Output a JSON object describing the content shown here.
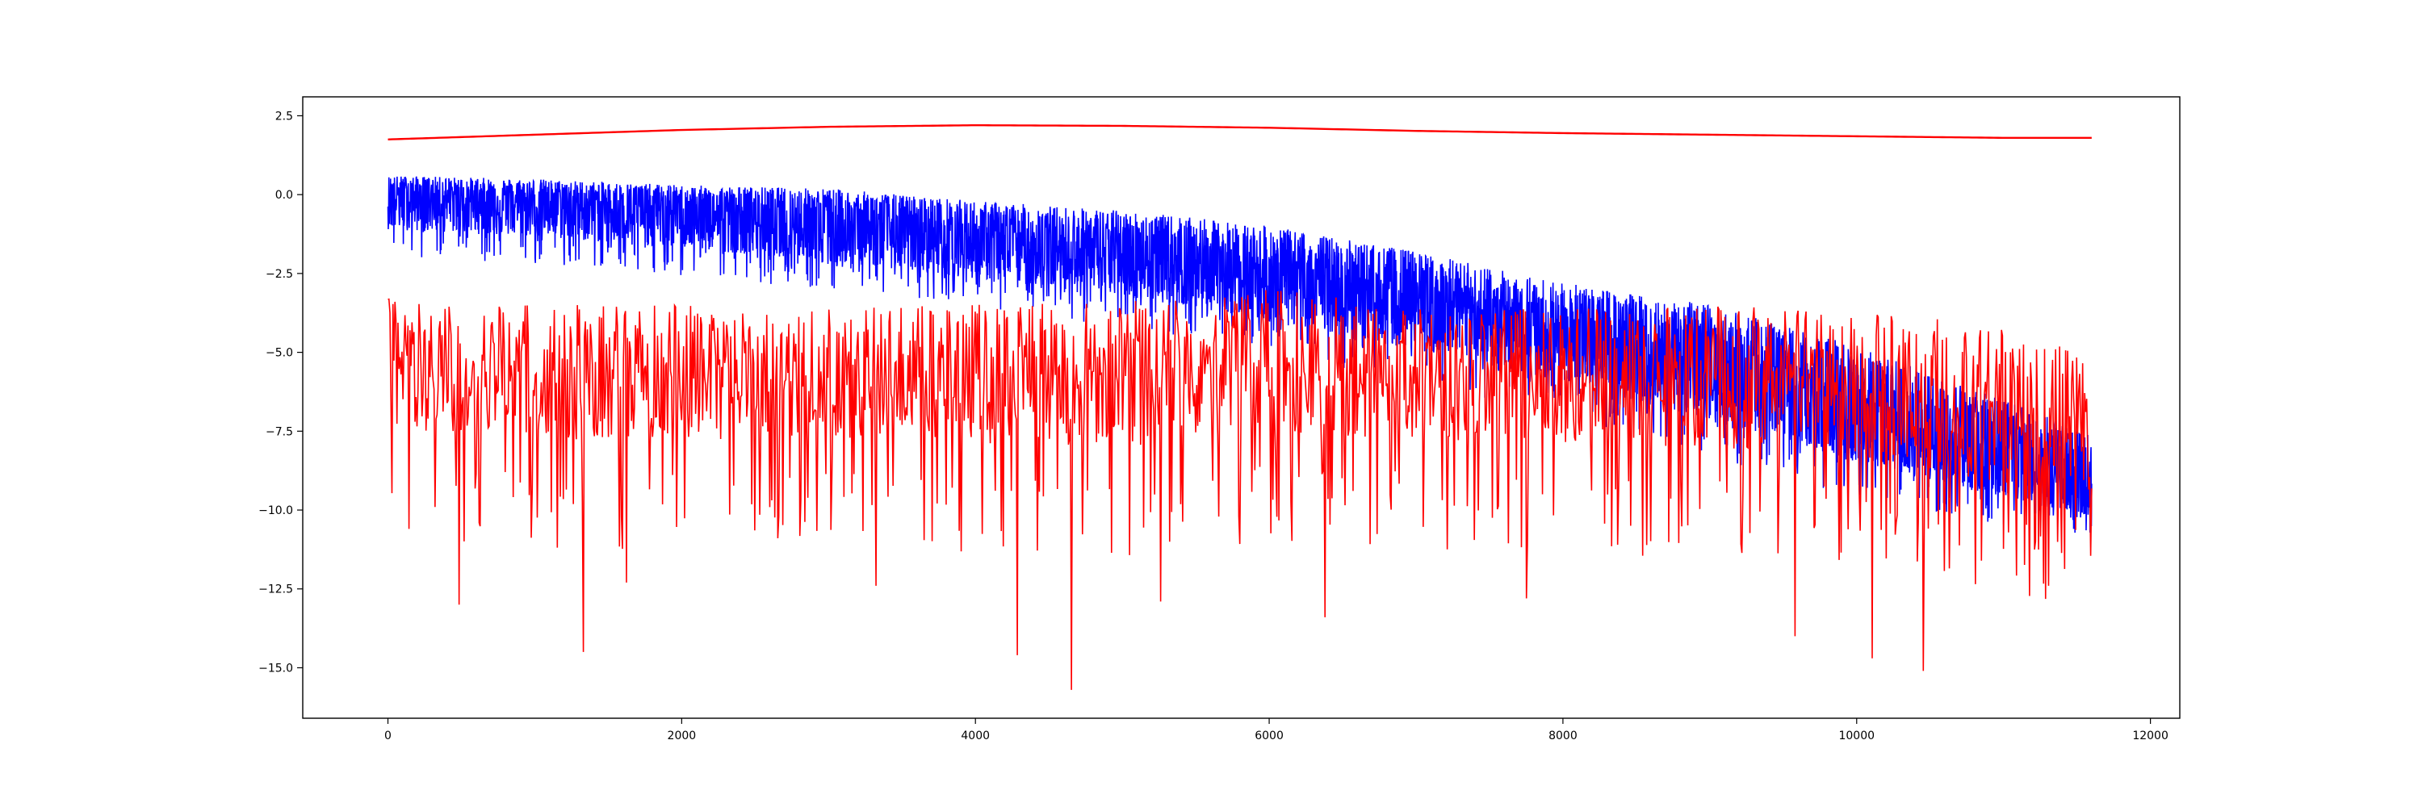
{
  "chart_data": {
    "type": "line",
    "title": "",
    "xlabel": "",
    "ylabel": "",
    "xlim": [
      -580,
      12200
    ],
    "ylim": [
      -16.6,
      3.1
    ],
    "xticks": [
      0,
      2000,
      4000,
      6000,
      8000,
      10000,
      12000
    ],
    "xtick_labels": [
      "0",
      "2000",
      "4000",
      "6000",
      "8000",
      "10000",
      "12000"
    ],
    "yticks": [
      2.5,
      0.0,
      -2.5,
      -5.0,
      -7.5,
      -10.0,
      -12.5,
      -15.0
    ],
    "ytick_labels": [
      "2.5",
      "0.0",
      "−2.5",
      "−5.0",
      "−7.5",
      "−10.0",
      "−12.5",
      "−15.0"
    ],
    "grid": false,
    "legend": "none",
    "series": [
      {
        "color": "#0000ff",
        "style": "noisy band",
        "x": [
          0,
          1000,
          2000,
          3000,
          4000,
          5000,
          6000,
          7000,
          8000,
          9000,
          10000,
          11000,
          11600
        ],
        "center": [
          0.0,
          -0.3,
          -0.6,
          -1.0,
          -1.5,
          -2.0,
          -2.7,
          -3.6,
          -4.6,
          -5.8,
          -7.1,
          -8.6,
          -9.4
        ],
        "lower_extent": [
          -2.0,
          -2.2,
          -2.6,
          -3.0,
          -3.6,
          -4.2,
          -5.0,
          -6.0,
          -7.0,
          -8.3,
          -9.6,
          -10.6,
          -10.8
        ],
        "upper_extent": [
          0.6,
          0.5,
          0.3,
          0.2,
          -0.2,
          -0.5,
          -1.0,
          -1.8,
          -2.8,
          -3.5,
          -4.8,
          -6.5,
          -7.6
        ]
      },
      {
        "color": "#ff0000",
        "style": "smooth",
        "x": [
          0,
          1000,
          2000,
          3000,
          4000,
          5000,
          6000,
          7000,
          8000,
          9000,
          10000,
          11000,
          11600
        ],
        "y": [
          1.75,
          1.9,
          2.05,
          2.15,
          2.2,
          2.18,
          2.12,
          2.02,
          1.95,
          1.9,
          1.85,
          1.8,
          1.8
        ]
      },
      {
        "color": "#ff0000",
        "style": "noisy spikes",
        "x": [
          0,
          1000,
          2000,
          3000,
          4000,
          5000,
          6000,
          7000,
          8000,
          9000,
          10000,
          11000,
          11600
        ],
        "upper": [
          -3.3,
          -3.5,
          -3.5,
          -3.6,
          -3.4,
          -3.4,
          -3.0,
          -3.5,
          -3.6,
          -3.5,
          -3.7,
          -3.9,
          -5.2
        ],
        "lower": [
          -7.5,
          -7.8,
          -7.8,
          -7.8,
          -7.9,
          -8.0,
          -7.5,
          -7.8,
          -8.0,
          -8.0,
          -8.3,
          -9.2,
          -9.5
        ],
        "deep_spikes": [
          {
            "x": 480,
            "y": -13.0
          },
          {
            "x": 1330,
            "y": -14.5
          },
          {
            "x": 1620,
            "y": -12.3
          },
          {
            "x": 3320,
            "y": -12.4
          },
          {
            "x": 4280,
            "y": -14.6
          },
          {
            "x": 4650,
            "y": -15.7
          },
          {
            "x": 5260,
            "y": -12.9
          },
          {
            "x": 6380,
            "y": -13.4
          },
          {
            "x": 7750,
            "y": -12.8
          },
          {
            "x": 9580,
            "y": -14.0
          },
          {
            "x": 10100,
            "y": -14.7
          },
          {
            "x": 10450,
            "y": -15.1
          },
          {
            "x": 11300,
            "y": -12.4
          }
        ]
      }
    ]
  }
}
